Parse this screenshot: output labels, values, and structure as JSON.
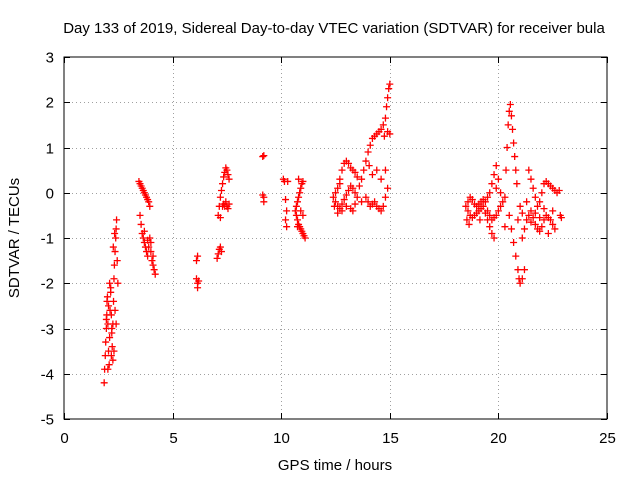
{
  "chart_data": {
    "type": "scatter",
    "title": "Day 133 of 2019, Sidereal Day-to-day VTEC variation (SDTVAR) for receiver bula",
    "xlabel": "GPS time / hours",
    "ylabel": "SDTVAR / TECUs",
    "xlim": [
      0,
      25
    ],
    "ylim": [
      -5,
      3
    ],
    "xticks": [
      0,
      5,
      10,
      15,
      20,
      25
    ],
    "yticks": [
      -5,
      -4,
      -3,
      -2,
      -1,
      0,
      1,
      2,
      3
    ],
    "grid": true,
    "marker": "+",
    "colors": {
      "series": "#ff0000",
      "axis": "#000000",
      "grid": "#a0a0a0"
    },
    "series": [
      {
        "name": "SDTVAR",
        "points": [
          [
            1.85,
            -4.2
          ],
          [
            1.87,
            -3.9
          ],
          [
            1.9,
            -3.6
          ],
          [
            1.92,
            -3.3
          ],
          [
            1.95,
            -3.0
          ],
          [
            1.97,
            -2.7
          ],
          [
            1.98,
            -2.4
          ],
          [
            2.0,
            -2.3
          ],
          [
            2.02,
            -2.9
          ],
          [
            2.05,
            -3.5
          ],
          [
            2.08,
            -3.8
          ],
          [
            2.1,
            -3.2
          ],
          [
            2.12,
            -2.6
          ],
          [
            2.15,
            -2.2
          ],
          [
            2.18,
            -2.7
          ],
          [
            2.2,
            -3.1
          ],
          [
            2.22,
            -3.4
          ],
          [
            2.25,
            -2.9
          ],
          [
            2.28,
            -2.4
          ],
          [
            2.3,
            -1.9
          ],
          [
            2.32,
            -1.6
          ],
          [
            2.35,
            -1.3
          ],
          [
            2.38,
            -1.0
          ],
          [
            2.4,
            -0.8
          ],
          [
            2.42,
            -0.6
          ],
          [
            2.3,
            -3.5
          ],
          [
            2.25,
            -3.7
          ],
          [
            2.2,
            -3.0
          ],
          [
            2.45,
            -1.5
          ],
          [
            2.48,
            -2.0
          ],
          [
            2.1,
            -2.0
          ],
          [
            2.05,
            -2.5
          ],
          [
            1.95,
            -2.8
          ],
          [
            2.15,
            -2.1
          ],
          [
            2.35,
            -2.6
          ],
          [
            2.4,
            -2.9
          ],
          [
            2.27,
            -1.2
          ],
          [
            2.33,
            -0.9
          ],
          [
            2.02,
            -3.9
          ],
          [
            2.18,
            -3.6
          ],
          [
            3.45,
            0.25
          ],
          [
            3.5,
            0.2
          ],
          [
            3.55,
            0.15
          ],
          [
            3.6,
            0.1
          ],
          [
            3.65,
            0.05
          ],
          [
            3.7,
            0.0
          ],
          [
            3.75,
            -0.05
          ],
          [
            3.8,
            -0.1
          ],
          [
            3.85,
            -0.15
          ],
          [
            3.9,
            -0.2
          ],
          [
            3.95,
            -0.3
          ],
          [
            3.5,
            -0.5
          ],
          [
            3.55,
            -0.7
          ],
          [
            3.6,
            -0.9
          ],
          [
            3.65,
            -1.0
          ],
          [
            3.7,
            -1.1
          ],
          [
            3.75,
            -1.2
          ],
          [
            3.8,
            -1.3
          ],
          [
            3.85,
            -1.4
          ],
          [
            3.9,
            -1.2
          ],
          [
            3.95,
            -1.0
          ],
          [
            4.0,
            -1.3
          ],
          [
            4.05,
            -1.5
          ],
          [
            4.1,
            -1.6
          ],
          [
            4.15,
            -1.7
          ],
          [
            4.2,
            -1.8
          ],
          [
            4.0,
            -1.1
          ],
          [
            3.7,
            -0.85
          ],
          [
            3.85,
            -1.05
          ],
          [
            4.1,
            -1.4
          ],
          [
            6.1,
            -1.5
          ],
          [
            6.15,
            -1.4
          ],
          [
            6.1,
            -1.9
          ],
          [
            6.15,
            -2.0
          ],
          [
            6.2,
            -1.95
          ],
          [
            6.15,
            -2.1
          ],
          [
            7.05,
            -1.45
          ],
          [
            7.1,
            -1.35
          ],
          [
            7.15,
            -1.25
          ],
          [
            7.2,
            -1.2
          ],
          [
            7.25,
            -1.3
          ],
          [
            7.1,
            -0.5
          ],
          [
            7.15,
            -0.3
          ],
          [
            7.2,
            -0.1
          ],
          [
            7.25,
            0.05
          ],
          [
            7.3,
            0.2
          ],
          [
            7.35,
            0.35
          ],
          [
            7.4,
            0.45
          ],
          [
            7.45,
            0.55
          ],
          [
            7.5,
            0.5
          ],
          [
            7.55,
            0.4
          ],
          [
            7.6,
            0.3
          ],
          [
            7.3,
            -0.3
          ],
          [
            7.35,
            -0.25
          ],
          [
            7.4,
            -0.3
          ],
          [
            7.45,
            -0.2
          ],
          [
            7.5,
            -0.3
          ],
          [
            7.55,
            -0.35
          ],
          [
            7.2,
            -0.55
          ],
          [
            7.6,
            -0.25
          ],
          [
            9.15,
            0.8
          ],
          [
            9.2,
            0.82
          ],
          [
            9.15,
            -0.05
          ],
          [
            9.2,
            -0.1
          ],
          [
            9.2,
            -0.2
          ],
          [
            10.1,
            0.3
          ],
          [
            10.15,
            0.25
          ],
          [
            10.2,
            -0.15
          ],
          [
            10.25,
            -0.4
          ],
          [
            10.2,
            -0.6
          ],
          [
            10.25,
            -0.75
          ],
          [
            10.3,
            0.25
          ],
          [
            10.65,
            -0.4
          ],
          [
            10.7,
            -0.5
          ],
          [
            10.75,
            -0.6
          ],
          [
            10.8,
            -0.7
          ],
          [
            10.85,
            -0.75
          ],
          [
            10.9,
            -0.8
          ],
          [
            10.95,
            -0.85
          ],
          [
            11.0,
            -0.9
          ],
          [
            11.05,
            -0.95
          ],
          [
            11.1,
            -1.0
          ],
          [
            10.7,
            -0.3
          ],
          [
            10.75,
            -0.2
          ],
          [
            10.8,
            -0.1
          ],
          [
            10.85,
            0.0
          ],
          [
            10.9,
            0.1
          ],
          [
            10.95,
            0.2
          ],
          [
            11.0,
            0.25
          ],
          [
            10.8,
            0.3
          ],
          [
            10.9,
            -0.4
          ],
          [
            11.0,
            -0.5
          ],
          [
            10.75,
            -0.75
          ],
          [
            12.4,
            -0.1
          ],
          [
            12.5,
            0.0
          ],
          [
            12.6,
            0.1
          ],
          [
            12.7,
            0.3
          ],
          [
            12.8,
            0.5
          ],
          [
            12.9,
            0.65
          ],
          [
            13.0,
            0.7
          ],
          [
            13.1,
            0.65
          ],
          [
            13.2,
            0.55
          ],
          [
            13.3,
            0.5
          ],
          [
            13.4,
            0.45
          ],
          [
            13.5,
            0.35
          ],
          [
            12.5,
            -0.2
          ],
          [
            12.6,
            -0.3
          ],
          [
            12.7,
            -0.35
          ],
          [
            12.8,
            -0.25
          ],
          [
            12.9,
            -0.15
          ],
          [
            13.0,
            -0.05
          ],
          [
            13.1,
            0.05
          ],
          [
            13.2,
            0.15
          ],
          [
            13.3,
            0.1
          ],
          [
            13.4,
            0.0
          ],
          [
            13.5,
            -0.1
          ],
          [
            12.6,
            -0.45
          ],
          [
            12.8,
            -0.4
          ],
          [
            13.0,
            -0.3
          ],
          [
            13.2,
            -0.35
          ],
          [
            13.4,
            -0.25
          ],
          [
            13.6,
            0.15
          ],
          [
            13.7,
            0.3
          ],
          [
            13.8,
            0.5
          ],
          [
            13.9,
            0.7
          ],
          [
            14.0,
            0.9
          ],
          [
            14.1,
            1.05
          ],
          [
            14.2,
            1.2
          ],
          [
            14.3,
            1.25
          ],
          [
            14.4,
            1.3
          ],
          [
            14.5,
            1.35
          ],
          [
            14.6,
            1.4
          ],
          [
            14.7,
            1.5
          ],
          [
            14.8,
            1.65
          ],
          [
            14.85,
            1.9
          ],
          [
            14.9,
            2.1
          ],
          [
            14.95,
            2.3
          ],
          [
            15.0,
            2.4
          ],
          [
            13.9,
            -0.1
          ],
          [
            14.0,
            -0.2
          ],
          [
            14.1,
            -0.3
          ],
          [
            14.2,
            -0.25
          ],
          [
            14.3,
            -0.2
          ],
          [
            14.4,
            -0.3
          ],
          [
            14.5,
            -0.35
          ],
          [
            14.6,
            -0.4
          ],
          [
            14.7,
            -0.3
          ],
          [
            14.8,
            -0.1
          ],
          [
            14.9,
            0.1
          ],
          [
            14.2,
            0.4
          ],
          [
            14.4,
            0.5
          ],
          [
            14.6,
            0.3
          ],
          [
            14.8,
            0.5
          ],
          [
            13.7,
            -0.2
          ],
          [
            12.7,
            0.2
          ],
          [
            13.3,
            -0.4
          ],
          [
            12.45,
            -0.3
          ],
          [
            14.05,
            0.6
          ],
          [
            14.75,
            1.25
          ],
          [
            14.9,
            1.35
          ],
          [
            15.0,
            1.3
          ],
          [
            18.5,
            -0.3
          ],
          [
            18.6,
            -0.4
          ],
          [
            18.7,
            -0.5
          ],
          [
            18.8,
            -0.55
          ],
          [
            18.9,
            -0.5
          ],
          [
            19.0,
            -0.45
          ],
          [
            19.1,
            -0.4
          ],
          [
            19.2,
            -0.35
          ],
          [
            18.6,
            -0.2
          ],
          [
            18.7,
            -0.1
          ],
          [
            18.8,
            -0.15
          ],
          [
            18.9,
            -0.25
          ],
          [
            19.0,
            -0.3
          ],
          [
            19.1,
            -0.25
          ],
          [
            19.2,
            -0.2
          ],
          [
            19.3,
            -0.3
          ],
          [
            19.4,
            -0.45
          ],
          [
            19.5,
            -0.6
          ],
          [
            19.6,
            -0.75
          ],
          [
            19.7,
            -0.9
          ],
          [
            19.8,
            -1.0
          ],
          [
            19.4,
            -0.2
          ],
          [
            19.5,
            -0.1
          ],
          [
            19.6,
            0.0
          ],
          [
            19.7,
            0.2
          ],
          [
            19.8,
            0.4
          ],
          [
            19.9,
            0.6
          ],
          [
            19.5,
            -0.4
          ],
          [
            19.6,
            -0.5
          ],
          [
            19.7,
            -0.6
          ],
          [
            19.8,
            -0.55
          ],
          [
            19.9,
            -0.5
          ],
          [
            20.0,
            -0.4
          ],
          [
            20.1,
            -0.3
          ],
          [
            20.2,
            -0.2
          ],
          [
            20.3,
            -0.1
          ],
          [
            20.35,
            0.5
          ],
          [
            20.4,
            1.0
          ],
          [
            20.45,
            1.5
          ],
          [
            20.5,
            1.8
          ],
          [
            20.55,
            1.95
          ],
          [
            20.6,
            1.7
          ],
          [
            20.65,
            1.4
          ],
          [
            20.7,
            1.1
          ],
          [
            20.75,
            0.8
          ],
          [
            20.8,
            0.5
          ],
          [
            20.85,
            0.2
          ],
          [
            20.5,
            -0.5
          ],
          [
            20.6,
            -0.8
          ],
          [
            20.7,
            -1.1
          ],
          [
            20.8,
            -1.4
          ],
          [
            20.9,
            -1.7
          ],
          [
            20.95,
            -1.9
          ],
          [
            21.0,
            -2.0
          ],
          [
            21.1,
            -1.9
          ],
          [
            21.2,
            -1.7
          ],
          [
            21.1,
            -1.0
          ],
          [
            21.2,
            -0.8
          ],
          [
            21.3,
            -0.6
          ],
          [
            21.4,
            -0.5
          ],
          [
            21.5,
            -0.4
          ],
          [
            21.6,
            -0.55
          ],
          [
            21.7,
            -0.7
          ],
          [
            21.8,
            -0.8
          ],
          [
            21.9,
            -0.85
          ],
          [
            22.0,
            -0.75
          ],
          [
            22.1,
            -0.6
          ],
          [
            22.2,
            -0.5
          ],
          [
            22.3,
            -0.55
          ],
          [
            22.4,
            -0.6
          ],
          [
            22.5,
            -0.7
          ],
          [
            22.6,
            -0.8
          ],
          [
            21.4,
            0.5
          ],
          [
            21.5,
            0.3
          ],
          [
            21.6,
            0.1
          ],
          [
            21.7,
            -0.1
          ],
          [
            21.8,
            -0.3
          ],
          [
            21.9,
            -0.2
          ],
          [
            22.0,
            0.0
          ],
          [
            22.1,
            0.2
          ],
          [
            22.2,
            0.25
          ],
          [
            22.3,
            0.2
          ],
          [
            22.4,
            0.15
          ],
          [
            22.5,
            0.1
          ],
          [
            22.6,
            0.05
          ],
          [
            22.7,
            0.0
          ],
          [
            22.8,
            0.05
          ],
          [
            22.85,
            -0.5
          ],
          [
            22.9,
            -0.55
          ],
          [
            21.0,
            -0.3
          ],
          [
            21.1,
            -0.45
          ],
          [
            21.3,
            -0.2
          ],
          [
            21.5,
            -0.65
          ],
          [
            21.7,
            -0.45
          ],
          [
            21.9,
            -0.55
          ],
          [
            22.1,
            -0.35
          ],
          [
            22.3,
            -0.9
          ],
          [
            22.5,
            -0.4
          ],
          [
            20.9,
            -0.6
          ],
          [
            20.3,
            -0.75
          ],
          [
            20.1,
            0.0
          ],
          [
            19.9,
            0.1
          ],
          [
            20.0,
            0.3
          ],
          [
            18.55,
            -0.6
          ],
          [
            18.65,
            -0.7
          ],
          [
            19.15,
            -0.6
          ],
          [
            19.3,
            -0.15
          ]
        ]
      }
    ]
  }
}
